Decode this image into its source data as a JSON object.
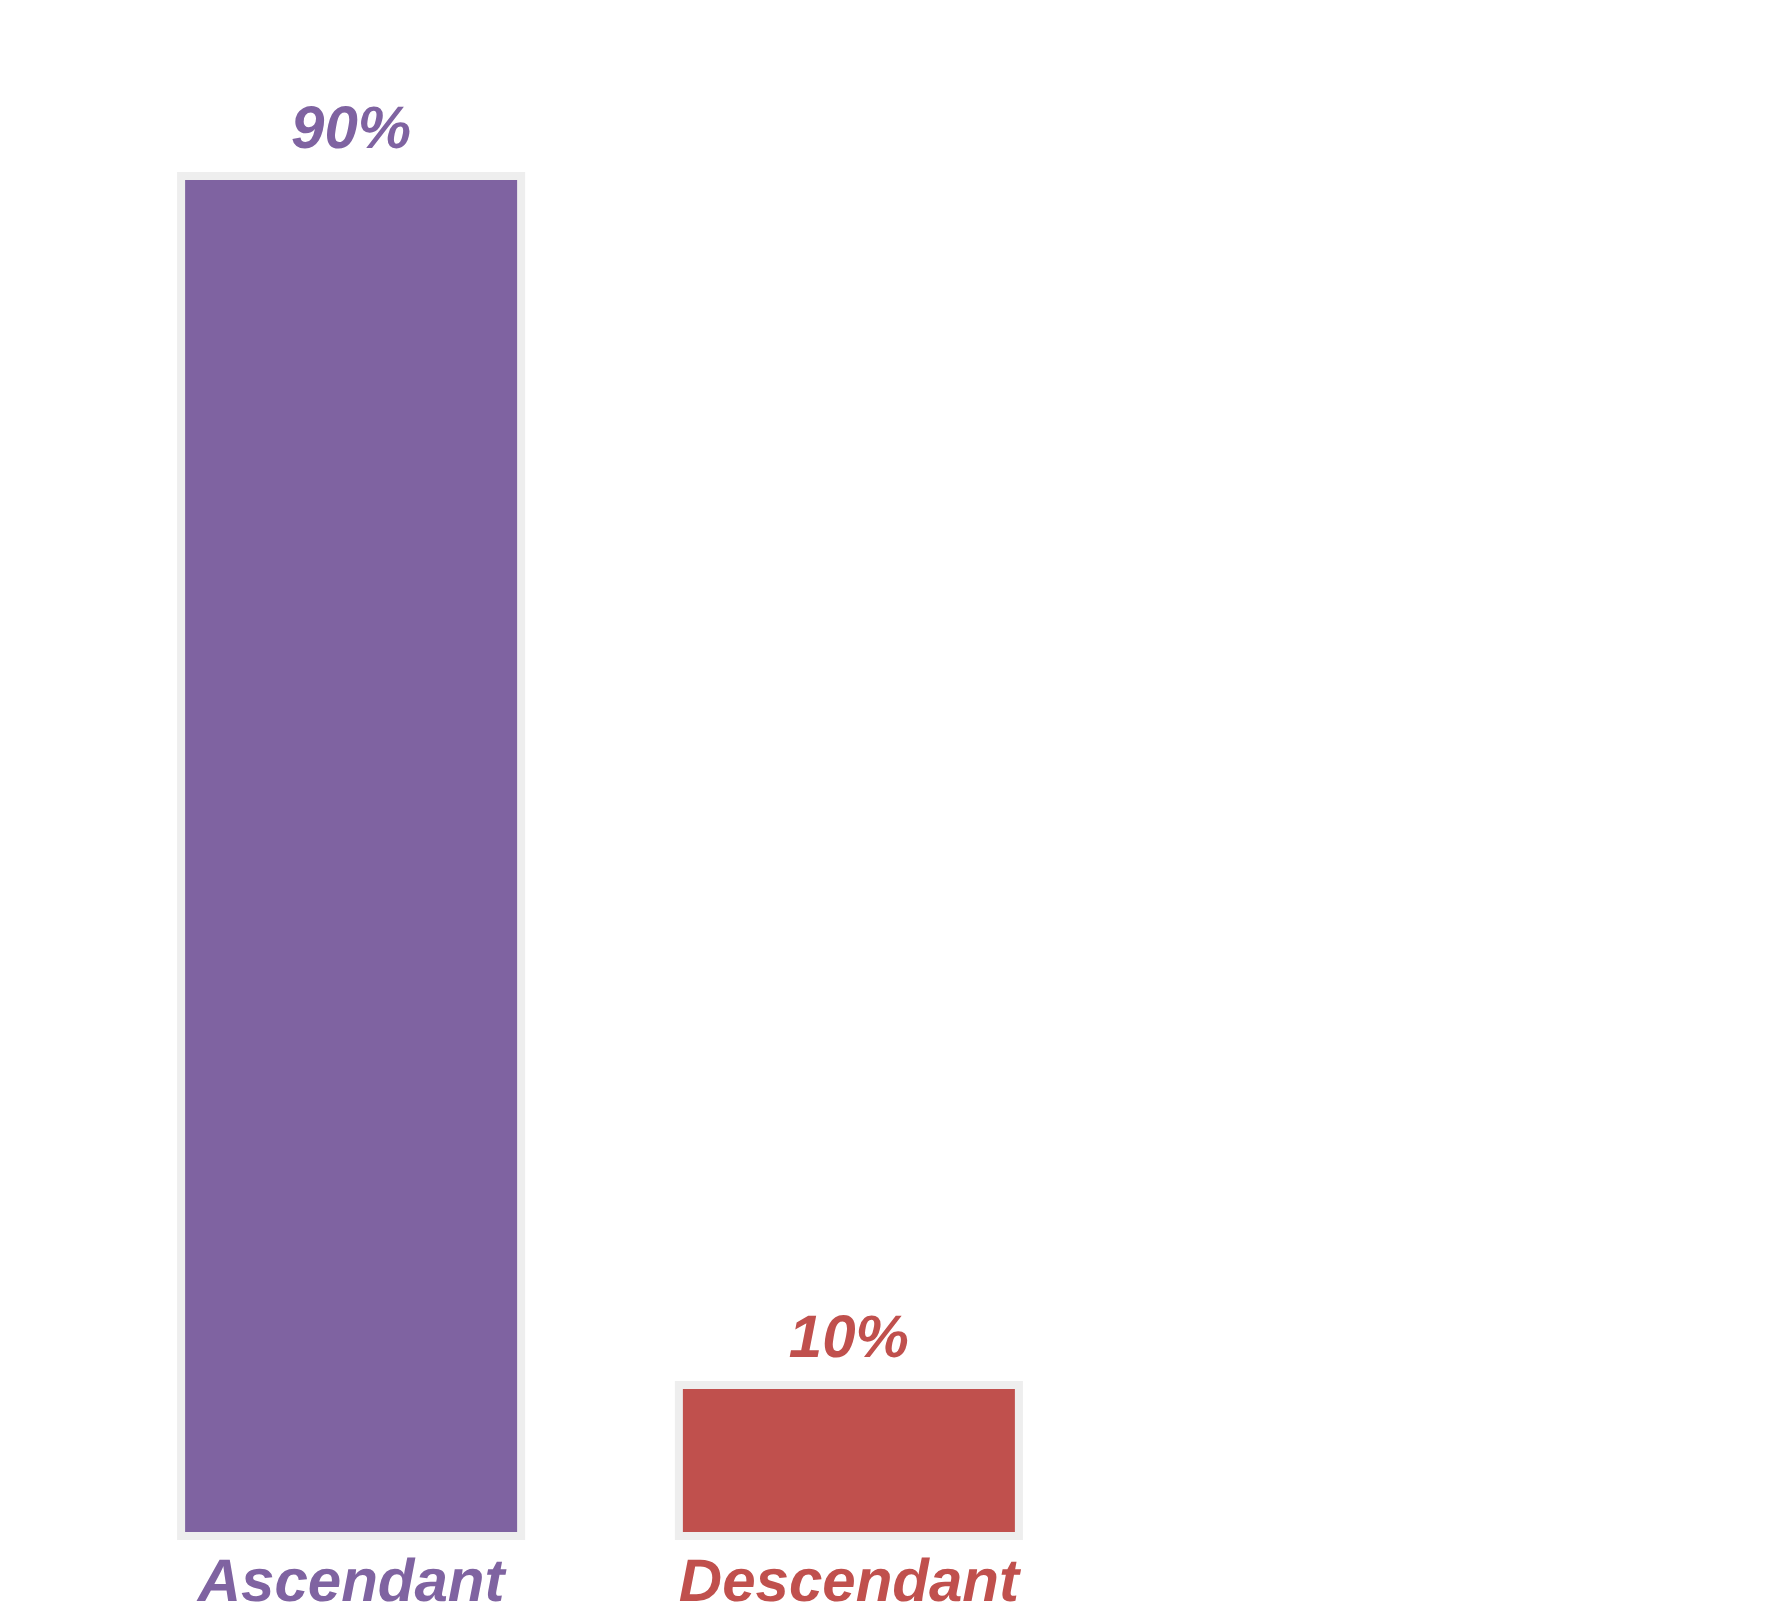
{
  "chart_data": {
    "type": "bar",
    "categories": [
      "Ascendant",
      "Descendant"
    ],
    "values": [
      90,
      10
    ],
    "colors": [
      "#7f63a1",
      "#c0504d"
    ],
    "value_labels": [
      "90%",
      "10%"
    ],
    "tick_labels": "x"
  }
}
